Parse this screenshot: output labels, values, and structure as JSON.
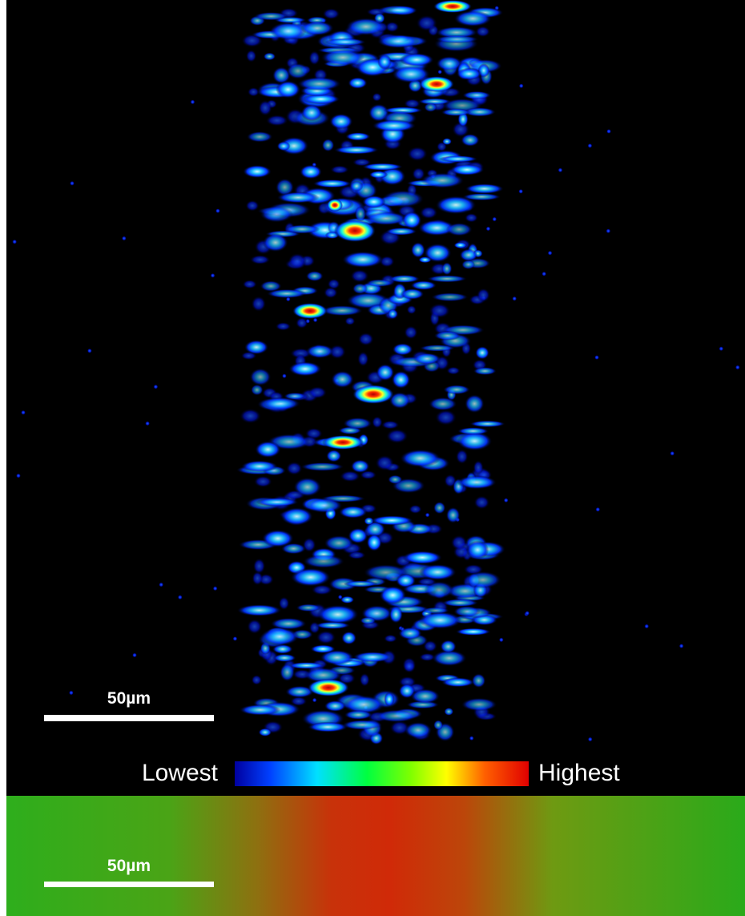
{
  "top_panel": {
    "scale_bar_label": "50µm"
  },
  "colorbar": {
    "low_label": "Lowest",
    "high_label": "Highest"
  },
  "bottom_panel": {
    "scale_bar_label": "50µm"
  }
}
